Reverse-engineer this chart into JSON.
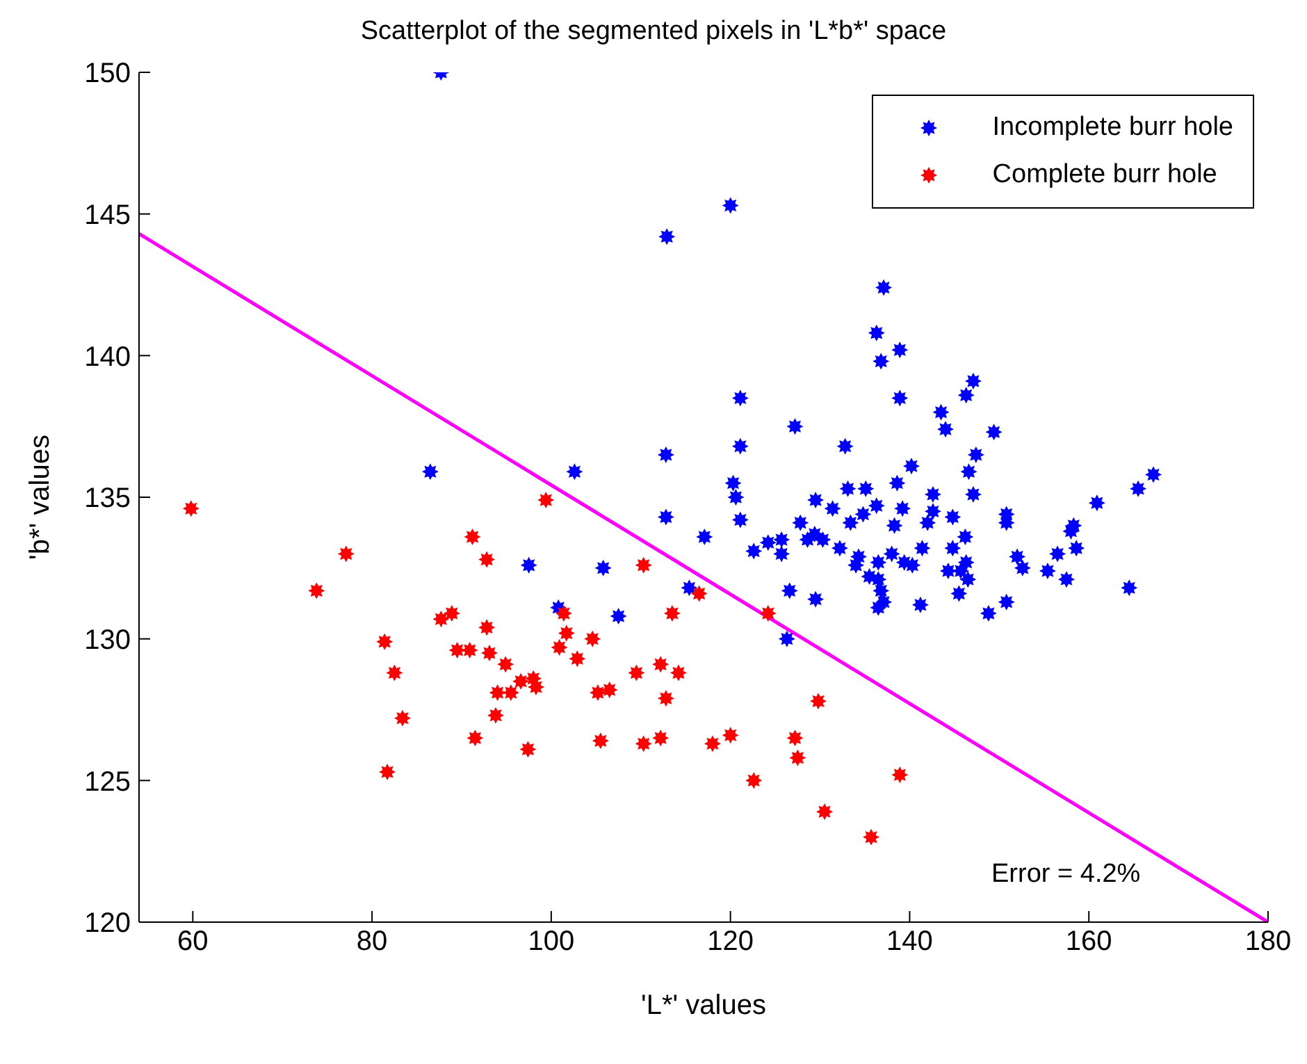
{
  "chart_data": {
    "type": "scatter",
    "title": "Scatterplot of the segmented pixels in 'L*b*' space",
    "xlabel": "'L*' values",
    "ylabel": "'b*' values",
    "xlim": [
      54,
      180
    ],
    "xticks": [
      60,
      80,
      100,
      120,
      140,
      160,
      180
    ],
    "ylim": [
      120,
      150
    ],
    "yticks": [
      120,
      125,
      130,
      135,
      140,
      145,
      150
    ],
    "grid": false,
    "legend": "top right",
    "marker": "star",
    "annotations": [
      "Error = 4.2%"
    ],
    "series": [
      {
        "name": "Incomplete burr hole",
        "color": "#0000ff",
        "x": [
          87.7,
          86.5,
          102.6,
          112.8,
          112.8,
          97.5,
          105.8,
          100.8,
          107.5,
          115.4,
          126.3,
          120.0,
          112.9,
          137.1,
          136.3,
          138.9,
          136.8,
          147.1,
          146.3,
          121.1,
          138.9,
          143.5,
          144.0,
          127.2,
          149.4,
          121.1,
          132.8,
          147.4,
          140.2,
          146.6,
          167.2,
          165.5,
          120.3,
          120.6,
          138.6,
          133.1,
          135.1,
          147.1,
          160.9,
          129.5,
          131.4,
          142.6,
          142.6,
          136.3,
          139.2,
          134.8,
          121.1,
          127.8,
          133.4,
          138.3,
          142.0,
          144.8,
          150.8,
          150.8,
          158.3,
          158.0,
          117.1,
          129.4,
          130.3,
          146.2,
          128.6,
          125.7,
          124.2,
          122.6,
          125.7,
          132.2,
          141.4,
          144.8,
          158.6,
          152.0,
          156.5,
          138.0,
          134.3,
          134.0,
          136.5,
          139.4,
          140.3,
          146.3,
          144.3,
          145.7,
          152.6,
          155.4,
          135.5,
          146.5,
          157.5,
          136.5,
          136.8,
          164.5,
          126.6,
          129.5,
          145.5,
          137.1,
          136.5,
          141.2,
          150.8,
          148.8
        ],
        "values": [
          150.0,
          135.9,
          135.9,
          136.5,
          134.3,
          132.6,
          132.5,
          131.1,
          130.8,
          131.8,
          130.0,
          145.3,
          144.2,
          142.4,
          140.8,
          140.2,
          139.8,
          139.1,
          138.6,
          138.5,
          138.5,
          138.0,
          137.4,
          137.5,
          137.3,
          136.8,
          136.8,
          136.5,
          136.1,
          135.9,
          135.8,
          135.3,
          135.5,
          135.0,
          135.5,
          135.3,
          135.3,
          135.1,
          134.8,
          134.9,
          134.6,
          135.1,
          134.5,
          134.7,
          134.6,
          134.4,
          134.2,
          134.1,
          134.1,
          134.0,
          134.1,
          134.3,
          134.4,
          134.1,
          134.0,
          133.8,
          133.6,
          133.7,
          133.5,
          133.6,
          133.5,
          133.5,
          133.4,
          133.1,
          133.0,
          133.2,
          133.2,
          133.2,
          133.2,
          132.9,
          133.0,
          133.0,
          132.9,
          132.6,
          132.7,
          132.7,
          132.6,
          132.7,
          132.4,
          132.4,
          132.5,
          132.4,
          132.2,
          132.1,
          132.1,
          132.1,
          131.7,
          131.8,
          131.7,
          131.4,
          131.6,
          131.3,
          131.1,
          131.2,
          131.3,
          130.9
        ]
      },
      {
        "name": "Complete burr hole",
        "color": "#ff0000",
        "x": [
          59.8,
          99.4,
          91.2,
          77.1,
          92.8,
          73.8,
          110.3,
          116.5,
          124.2,
          87.7,
          88.9,
          101.4,
          113.5,
          92.8,
          101.7,
          100.9,
          104.6,
          81.4,
          89.5,
          90.9,
          93.1,
          102.9,
          94.9,
          112.2,
          82.5,
          109.5,
          114.2,
          98.0,
          96.6,
          98.3,
          94.0,
          95.5,
          105.2,
          106.5,
          112.8,
          83.4,
          93.8,
          91.5,
          97.4,
          105.5,
          110.3,
          112.2,
          118.0,
          120.0,
          81.7,
          122.6,
          129.8,
          127.2,
          127.5,
          138.9,
          130.5,
          135.7
        ],
        "values": [
          134.6,
          134.9,
          133.6,
          133.0,
          132.8,
          131.7,
          132.6,
          131.6,
          130.9,
          130.7,
          130.9,
          130.9,
          130.9,
          130.4,
          130.2,
          129.7,
          130.0,
          129.9,
          129.6,
          129.6,
          129.5,
          129.3,
          129.1,
          129.1,
          128.8,
          128.8,
          128.8,
          128.6,
          128.5,
          128.3,
          128.1,
          128.1,
          128.1,
          128.2,
          127.9,
          127.2,
          127.3,
          126.5,
          126.1,
          126.4,
          126.3,
          126.5,
          126.3,
          126.6,
          125.3,
          125.0,
          127.8,
          126.5,
          125.8,
          125.2,
          123.9,
          123.0
        ]
      },
      {
        "type": "line",
        "marker": "none",
        "color": "#ff00ff",
        "x": [
          54,
          180
        ],
        "values": [
          144.3,
          120
        ]
      }
    ]
  }
}
